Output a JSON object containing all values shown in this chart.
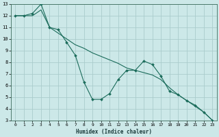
{
  "xlabel": "Humidex (Indice chaleur)",
  "bg_color": "#cce8e8",
  "grid_color": "#aacccc",
  "line_color": "#1a6b5a",
  "xlim": [
    -0.5,
    23.5
  ],
  "ylim": [
    3,
    13
  ],
  "xticks": [
    0,
    1,
    2,
    3,
    4,
    5,
    6,
    7,
    8,
    9,
    10,
    11,
    12,
    13,
    14,
    15,
    16,
    17,
    18,
    19,
    20,
    21,
    22,
    23
  ],
  "yticks": [
    3,
    4,
    5,
    6,
    7,
    8,
    9,
    10,
    11,
    12,
    13
  ],
  "line1_x": [
    0,
    1,
    2,
    3,
    4,
    5,
    6,
    7,
    8,
    9,
    10,
    11,
    12,
    13,
    14,
    15,
    16,
    17,
    18,
    19,
    20,
    21,
    22,
    23
  ],
  "line1_y": [
    12,
    12,
    12,
    12.5,
    11.0,
    10.5,
    10.0,
    9.5,
    9.2,
    8.8,
    8.5,
    8.2,
    7.9,
    7.5,
    7.3,
    7.1,
    6.9,
    6.5,
    5.8,
    5.2,
    4.7,
    4.2,
    3.7,
    3.0
  ],
  "line2_x": [
    0,
    1,
    2,
    3,
    4,
    5,
    6,
    7,
    8,
    9,
    10,
    11,
    12,
    13,
    14,
    15,
    16,
    17,
    18,
    19,
    20,
    21,
    22,
    23
  ],
  "line2_y": [
    12,
    12,
    12.2,
    13.0,
    11.0,
    10.8,
    9.7,
    8.6,
    6.3,
    4.8,
    4.8,
    5.3,
    6.5,
    7.3,
    7.3,
    8.1,
    7.8,
    6.8,
    5.5,
    5.2,
    4.7,
    4.3,
    3.7,
    3.0
  ]
}
